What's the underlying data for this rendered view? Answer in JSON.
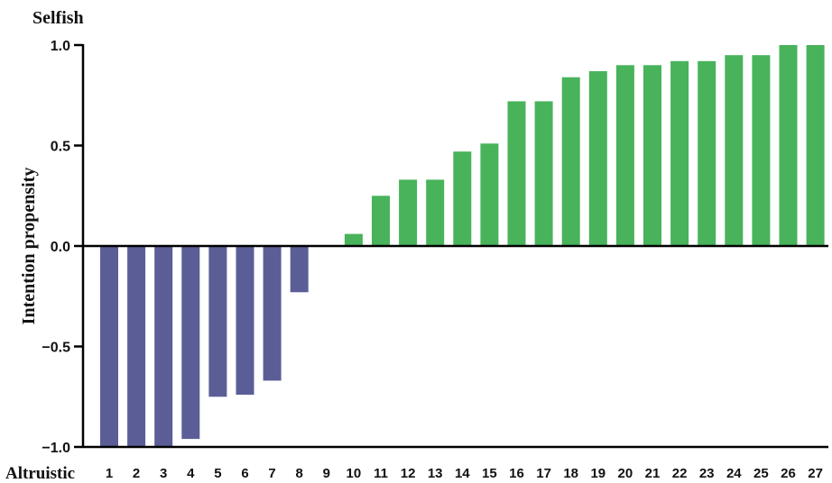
{
  "chart_data": {
    "type": "bar",
    "ylabel": "Intention propensity",
    "top_annotation": "Selfish",
    "bottom_annotation": "Altruistic",
    "ylim": [
      -1.0,
      1.0
    ],
    "yticks": [
      "1.0",
      "0.5",
      "0.0",
      "−0.5",
      "−1.0"
    ],
    "ytick_values": [
      1.0,
      0.5,
      0.0,
      -0.5,
      -1.0
    ],
    "categories": [
      "1",
      "2",
      "3",
      "4",
      "5",
      "6",
      "7",
      "8",
      "9",
      "10",
      "11",
      "12",
      "13",
      "14",
      "15",
      "16",
      "17",
      "18",
      "19",
      "20",
      "21",
      "22",
      "23",
      "24",
      "25",
      "26",
      "27"
    ],
    "values": [
      -1.0,
      -1.0,
      -1.0,
      -0.96,
      -0.75,
      -0.74,
      -0.67,
      -0.23,
      0.0,
      0.06,
      0.25,
      0.33,
      0.33,
      0.47,
      0.51,
      0.72,
      0.72,
      0.84,
      0.87,
      0.9,
      0.9,
      0.92,
      0.92,
      0.95,
      0.95,
      1.0,
      1.0
    ],
    "grid": false,
    "colors": {
      "negative": "#5b5e96",
      "positive": "#48b35a",
      "axis": "#000000"
    }
  }
}
